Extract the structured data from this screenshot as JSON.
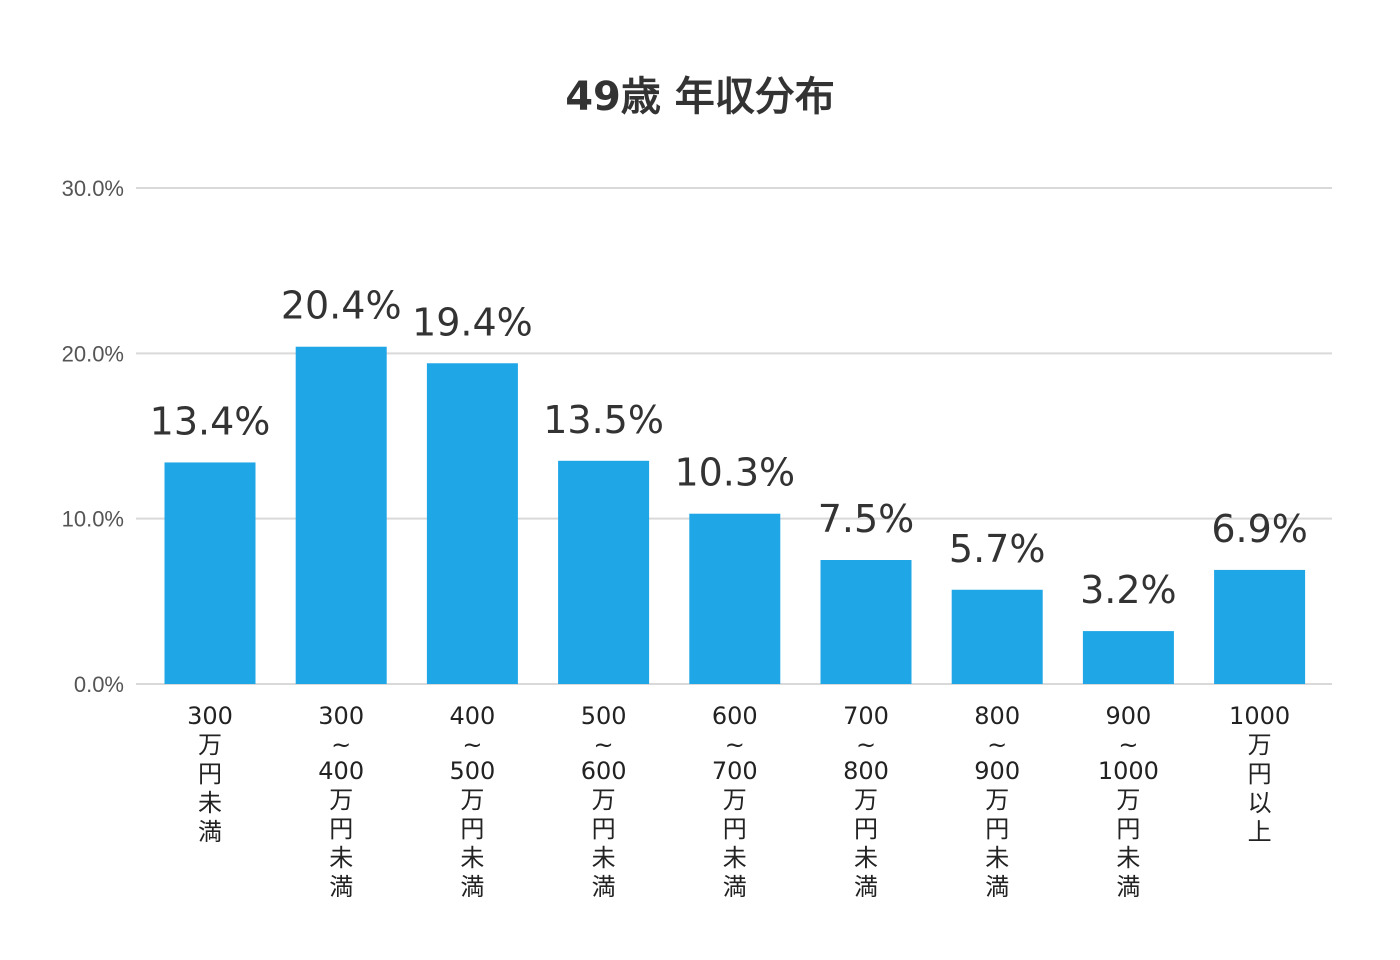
{
  "chart_data": {
    "type": "bar",
    "title": "49歳 年収分布",
    "xlabel": "",
    "ylabel": "",
    "ylim": [
      0,
      30
    ],
    "yticks": [
      "0.0%",
      "10.0%",
      "20.0%",
      "30.0%"
    ],
    "ytick_values": [
      0,
      10,
      20,
      30
    ],
    "grid": true,
    "legend": "none",
    "bar_color": "#1fa6e6",
    "grid_color": "#d9d9d9",
    "categories": [
      [
        "300",
        "万",
        "円",
        "未",
        "満"
      ],
      [
        "300",
        "~",
        "400",
        "万",
        "円",
        "未",
        "満"
      ],
      [
        "400",
        "~",
        "500",
        "万",
        "円",
        "未",
        "満"
      ],
      [
        "500",
        "~",
        "600",
        "万",
        "円",
        "未",
        "満"
      ],
      [
        "600",
        "~",
        "700",
        "万",
        "円",
        "未",
        "満"
      ],
      [
        "700",
        "~",
        "800",
        "万",
        "円",
        "未",
        "満"
      ],
      [
        "800",
        "~",
        "900",
        "万",
        "円",
        "未",
        "満"
      ],
      [
        "900",
        "~",
        "1000",
        "万",
        "円",
        "未",
        "満"
      ],
      [
        "1000",
        "万",
        "円",
        "以",
        "上"
      ]
    ],
    "values": [
      13.4,
      20.4,
      19.4,
      13.5,
      10.3,
      7.5,
      5.7,
      3.2,
      6.9
    ],
    "value_labels": [
      "13.4%",
      "20.4%",
      "19.4%",
      "13.5%",
      "10.3%",
      "7.5%",
      "5.7%",
      "3.2%",
      "6.9%"
    ]
  }
}
